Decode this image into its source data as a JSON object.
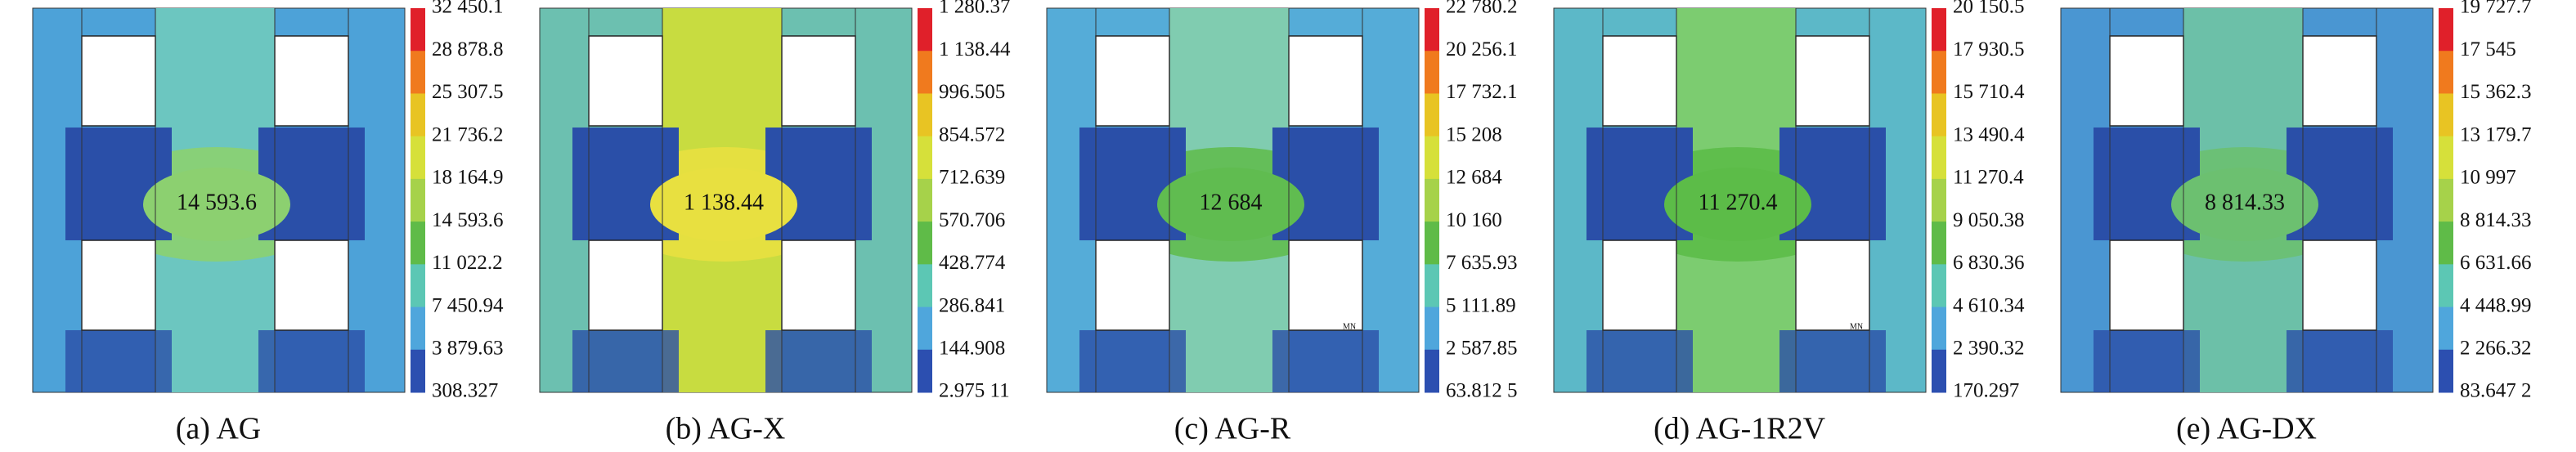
{
  "panels": [
    {
      "caption": "(a) AG",
      "center_label": "14 593.6",
      "legend": [
        "32 450.1",
        "28 878.8",
        "25 307.5",
        "21 736.2",
        "18 164.9",
        "14 593.6",
        "11 022.2",
        "7 450.94",
        "3 879.63",
        "308.327"
      ]
    },
    {
      "caption": "(b) AG-X",
      "center_label": "1 138.44",
      "legend": [
        "1 280.37",
        "1 138.44",
        "996.505",
        "854.572",
        "712.639",
        "570.706",
        "428.774",
        "286.841",
        "144.908",
        "2.975 11"
      ]
    },
    {
      "caption": "(c) AG-R",
      "center_label": "12 684",
      "min_label": "MN",
      "legend": [
        "22 780.2",
        "20 256.1",
        "17 732.1",
        "15 208",
        "12 684",
        "10 160",
        "7 635.93",
        "5 111.89",
        "2 587.85",
        "63.812 5"
      ]
    },
    {
      "caption": "(d) AG-1R2V",
      "center_label": "11 270.4",
      "min_label": "MN",
      "legend": [
        "20 150.5",
        "17 930.5",
        "15 710.4",
        "13 490.4",
        "11 270.4",
        "9 050.38",
        "6 830.36",
        "4 610.34",
        "2 390.32",
        "170.297"
      ]
    },
    {
      "caption": "(e) AG-DX",
      "center_label": "8 814.33",
      "legend": [
        "19 727.7",
        "17 545",
        "15 362.3",
        "13 179.7",
        "10 997",
        "8 814.33",
        "6 631.66",
        "4 448.99",
        "2 266.32",
        "83.647 2"
      ]
    }
  ]
}
